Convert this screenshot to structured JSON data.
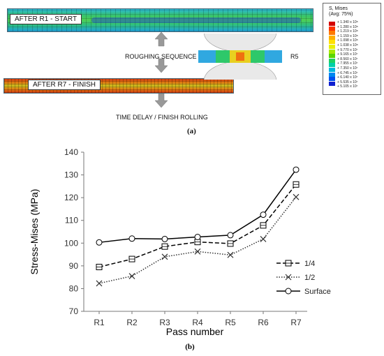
{
  "top": {
    "label_r1": "AFTER R1 - START",
    "label_r7": "AFTER R7 - FINISH",
    "roughing": "ROUGHING SEQUENCE",
    "finish": "TIME DELAY / FINISH ROLLING",
    "r5": "R5",
    "caption": "(a)",
    "legend_title": "S, Mises\n(Avg: 75%)",
    "legend_values": [
      "1.340 x 10⁸",
      "1.280 x 10⁸",
      "1.219 x 10⁸",
      "1.159 x 10⁸",
      "1.098 x 10⁸",
      "1.038 x 10⁸",
      "9.770 x 10⁷",
      "9.165 x 10⁷",
      "8.560 x 10⁷",
      "7.955 x 10⁷",
      "7.350 x 10⁷",
      "6.745 x 10⁷",
      "6.140 x 10⁷",
      "5.535 x 10⁷",
      "5.105 x 10⁷"
    ],
    "legend_colors": [
      "#d40000",
      "#ff3300",
      "#ff7a00",
      "#ffb000",
      "#ffe000",
      "#e8f000",
      "#a8e800",
      "#5ad600",
      "#1fd060",
      "#00d0a8",
      "#00b8e0",
      "#0088f0",
      "#0050f0",
      "#1020d0"
    ]
  },
  "chart_data": {
    "type": "line",
    "caption": "(b)",
    "xlabel": "Pass number",
    "ylabel": "Stress-Mises (MPa)",
    "categories": [
      "R1",
      "R2",
      "R3",
      "R4",
      "R5",
      "R6",
      "R7"
    ],
    "ylim": [
      70,
      140
    ],
    "yticks": [
      70,
      80,
      90,
      100,
      110,
      120,
      130,
      140
    ],
    "legend_position": "right",
    "grid": false,
    "series": [
      {
        "name": "1/4",
        "values": [
          89.5,
          93,
          98.5,
          100.5,
          99.8,
          107.8,
          125.8
        ],
        "color": "#000000",
        "dash": "6,3",
        "marker": "square"
      },
      {
        "name": "1/2",
        "values": [
          82.3,
          85.5,
          94,
          96.3,
          94.8,
          101.8,
          120.3
        ],
        "color": "#333333",
        "dash": "1.5,2",
        "marker": "x"
      },
      {
        "name": "Surface",
        "values": [
          100.3,
          102,
          101.8,
          102.7,
          103.5,
          112.5,
          132.3
        ],
        "color": "#000000",
        "dash": "",
        "marker": "circle"
      }
    ]
  }
}
